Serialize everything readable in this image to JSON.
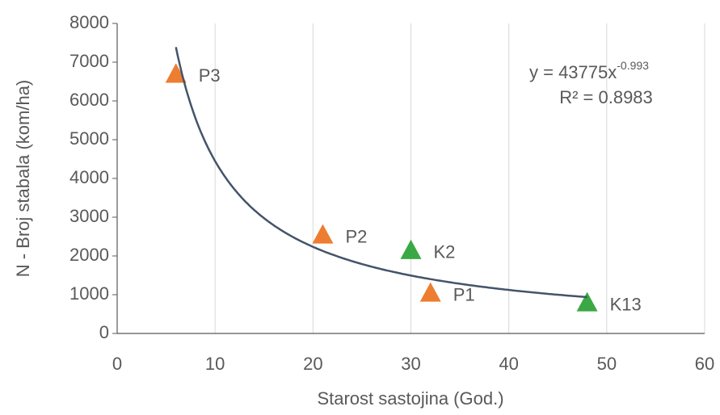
{
  "chart_data": {
    "type": "scatter",
    "xlabel": "Starost sastojina (God.)",
    "ylabel": "N - Broj stabala (kom/ha)",
    "series": [
      {
        "color": "#ed7d31",
        "x": [
          6,
          21,
          32
        ],
        "values": [
          6700,
          2550,
          1050
        ],
        "labels": [
          "P3",
          "P2",
          "P1"
        ]
      },
      {
        "color": "#3aa845",
        "x": [
          30,
          48
        ],
        "values": [
          2150,
          800
        ],
        "labels": [
          "K2",
          "K13"
        ]
      }
    ],
    "trendline": {
      "type": "power",
      "coefficient": 43775,
      "exponent": -0.993,
      "color": "#44546a",
      "equation_label": "y = 43775x",
      "exponent_label": "-0.993",
      "r2_label": "R² = 0.8983"
    },
    "xlim": [
      0,
      60
    ],
    "xticks": [
      0,
      10,
      20,
      30,
      40,
      50,
      60
    ],
    "ylim": [
      0,
      8000
    ],
    "yticks": [
      0,
      1000,
      2000,
      3000,
      4000,
      5000,
      6000,
      7000,
      8000
    ],
    "grid": "x"
  }
}
